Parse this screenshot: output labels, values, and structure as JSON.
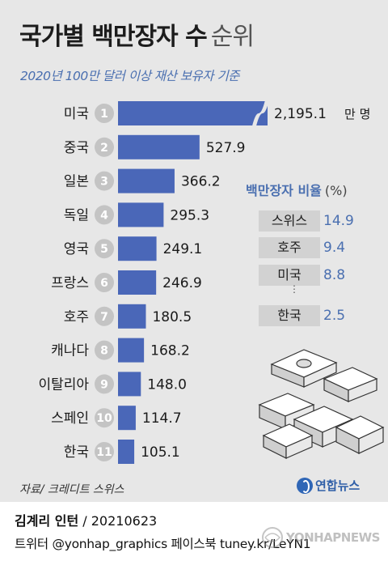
{
  "title": {
    "main": "국가별 백만장자 수",
    "sub": "순위"
  },
  "subtitle": "2020년 100만 달러 이상 재산 보유자 기준",
  "chart_data": {
    "type": "bar",
    "orientation": "horizontal",
    "categories": [
      "미국",
      "중국",
      "일본",
      "독일",
      "영국",
      "프랑스",
      "호주",
      "캐나다",
      "이탈리아",
      "스페인",
      "한국"
    ],
    "ranks": [
      "1",
      "2",
      "3",
      "4",
      "5",
      "6",
      "7",
      "8",
      "9",
      "10",
      "11"
    ],
    "values": [
      2195.1,
      527.9,
      366.2,
      295.3,
      249.1,
      246.9,
      180.5,
      168.2,
      148.0,
      114.7,
      105.1
    ],
    "value_labels": [
      "2,195.1",
      "527.9",
      "366.2",
      "295.3",
      "249.1",
      "246.9",
      "180.5",
      "168.2",
      "148.0",
      "114.7",
      "105.1"
    ],
    "unit": "만 명",
    "axis_break_on_first_bar": true,
    "bar_color": "#4a67b8"
  },
  "ratio_panel": {
    "title": "백만장자 비율",
    "unit": "(%)",
    "rows": [
      {
        "country": "스위스",
        "value": "14.9"
      },
      {
        "country": "호주",
        "value": "9.4"
      },
      {
        "country": "미국",
        "value": "8.8"
      },
      {
        "country": "한국",
        "value": "2.5"
      }
    ],
    "ellipsis": "⋮"
  },
  "source": "자료/ 크레디트 스위스",
  "logo": {
    "name": "연합뉴스",
    "icon": "yonhap-logo-icon"
  },
  "credits": {
    "author": "김계리 인턴",
    "date": "/ 20210623",
    "social": "트위터 @yonhap_graphics  페이스북 tuney.kr/LeYN1"
  },
  "watermark": "YONHAPNEWS",
  "colors": {
    "accent": "#4a6fb0",
    "bar": "#4a67b8",
    "background": "#e7e7e7",
    "badge": "#c4c4c4"
  }
}
